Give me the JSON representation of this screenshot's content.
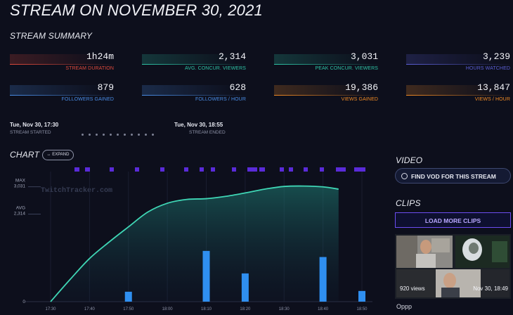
{
  "page": {
    "title": "STREAM ON NOVEMBER 30, 2021"
  },
  "summary": {
    "heading": "STREAM SUMMARY",
    "stats": [
      {
        "value": "1h24m",
        "label": "STREAM DURATION",
        "color": "#e04a3c"
      },
      {
        "value": "2,314",
        "label": "AVG. CONCUR. VIEWERS",
        "color": "#2ec4a6"
      },
      {
        "value": "3,031",
        "label": "PEAK CONCUR. VIEWERS",
        "color": "#2ec4a6"
      },
      {
        "value": "3,239",
        "label": "HOURS WATCHED",
        "color": "#5b5fd6"
      },
      {
        "value": "879",
        "label": "FOLLOWERS GAINED",
        "color": "#4a8ee8"
      },
      {
        "value": "628",
        "label": "FOLLOWERS / HOUR",
        "color": "#4a8ee8"
      },
      {
        "value": "19,386",
        "label": "VIEWS GAINED",
        "color": "#f08a24"
      },
      {
        "value": "13,847",
        "label": "VIEWS / HOUR",
        "color": "#f08a24"
      }
    ],
    "started": {
      "time": "Tue, Nov 30, 17:30",
      "label": "STREAM STARTED"
    },
    "ended": {
      "time": "Tue, Nov 30, 18:55",
      "label": "STREAM ENDED"
    }
  },
  "chart_section": {
    "heading": "CHART",
    "expand_label": "↔ EXPAND",
    "watermark": "TwitchTracker.com"
  },
  "chart_data": {
    "type": "line",
    "x": [
      "17:30",
      "17:40",
      "17:50",
      "18:00",
      "18:10",
      "18:20",
      "18:30",
      "18:40",
      "18:50"
    ],
    "viewers": [
      [
        0,
        0
      ],
      [
        5,
        580
      ],
      [
        10,
        1130
      ],
      [
        15,
        1560
      ],
      [
        20,
        1960
      ],
      [
        25,
        2350
      ],
      [
        30,
        2580
      ],
      [
        35,
        2680
      ],
      [
        40,
        2700
      ],
      [
        45,
        2760
      ],
      [
        50,
        2850
      ],
      [
        55,
        2950
      ],
      [
        60,
        3020
      ],
      [
        65,
        3031
      ],
      [
        70,
        3010
      ],
      [
        74,
        2950
      ]
    ],
    "bars": [
      {
        "minute": 20,
        "value": 260
      },
      {
        "minute": 40,
        "value": 1330
      },
      {
        "minute": 50,
        "value": 740
      },
      {
        "minute": 70,
        "value": 1170
      },
      {
        "minute": 80,
        "value": 280
      }
    ],
    "y_ticks": [
      {
        "label": "MAX",
        "sub": "3,031",
        "value": 3031
      },
      {
        "label": "AVG",
        "sub": "2,314",
        "value": 2314
      },
      {
        "label": "0",
        "sub": "",
        "value": 0
      }
    ],
    "ylim": [
      0,
      3300
    ],
    "xlim_minutes": [
      0,
      80
    ],
    "line_color": "#3fd6b5",
    "bar_color": "#2f8ff0",
    "marker_color": "#5a2bd9"
  },
  "video": {
    "heading": "VIDEO",
    "find_vod_label": "FIND VOD FOR THIS STREAM"
  },
  "clips": {
    "heading": "CLIPS",
    "load_more_label": "LOAD MORE CLIPS",
    "clip": {
      "views": "920 views",
      "date": "Nov 30, 18:49",
      "title": "Oppp"
    }
  },
  "colors": {
    "background": "#0d0f1c",
    "accent_purple": "#6b4df0"
  }
}
